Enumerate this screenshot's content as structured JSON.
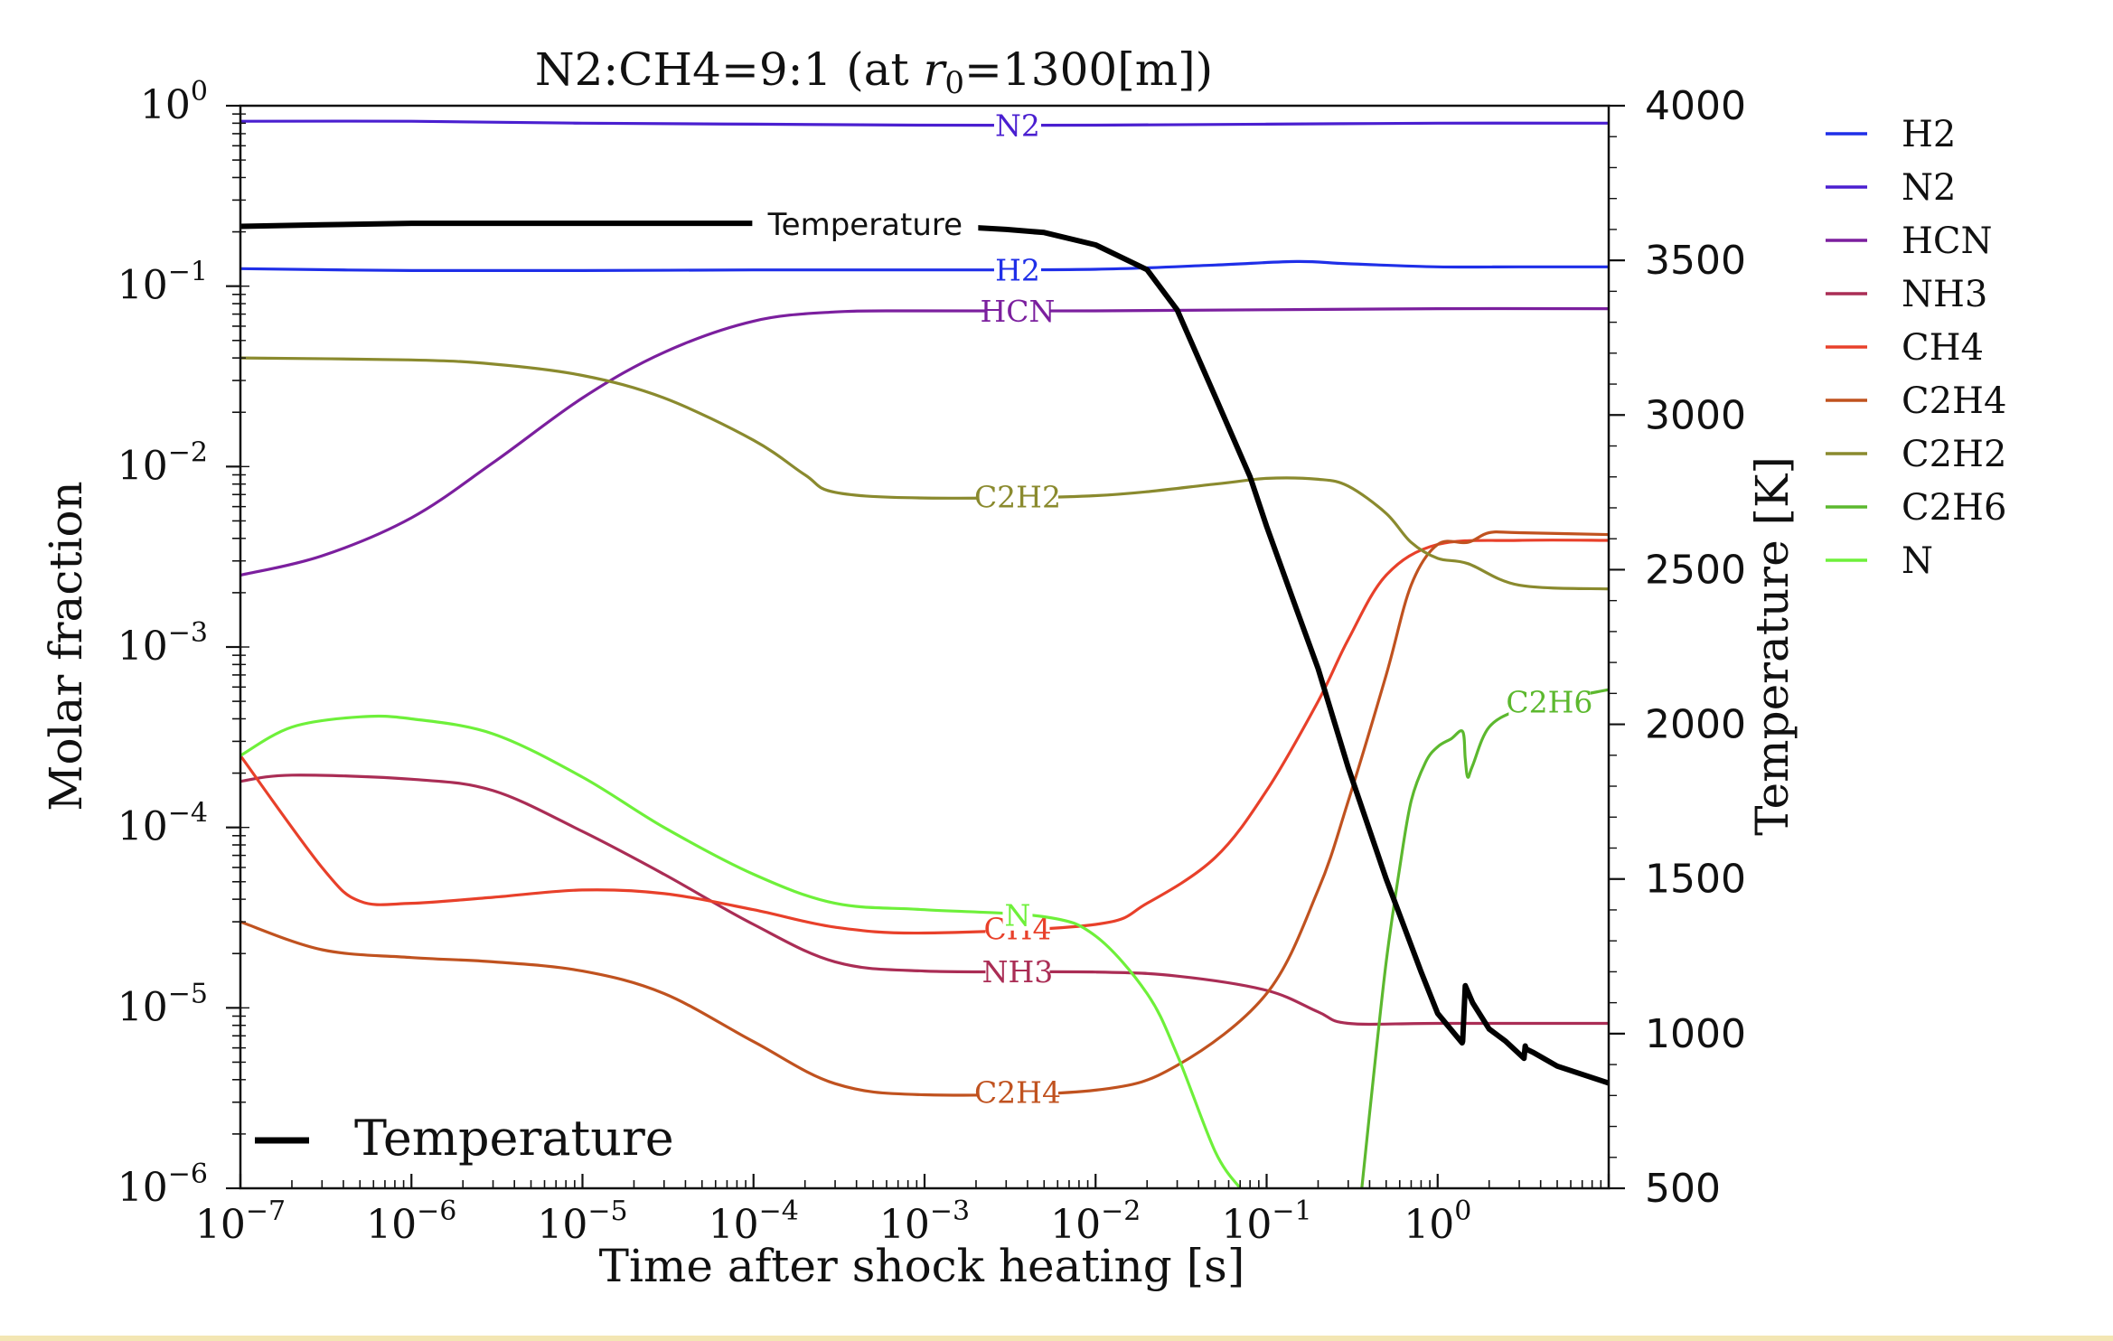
{
  "chart_data": {
    "type": "line",
    "title": "N2:CH4=9:1 (at r₀=1300[m])",
    "title_parts": {
      "prefix": "N2:CH4=9:1 (at ",
      "symbol": "r",
      "subscript": "0",
      "suffix": "=1300[m])"
    },
    "xlabel": "Time after shock heating [s]",
    "ylabel": "Molar fraction",
    "y2label": "Temperature [K]",
    "xscale": "log",
    "yscale": "log",
    "xlim": [
      1e-07,
      10
    ],
    "ylim": [
      1e-06,
      1
    ],
    "y2lim": [
      500,
      4000
    ],
    "x_tick_labels": [
      {
        "base": "10",
        "exp": "−7",
        "value": 1e-07
      },
      {
        "base": "10",
        "exp": "−6",
        "value": 1e-06
      },
      {
        "base": "10",
        "exp": "−5",
        "value": 1e-05
      },
      {
        "base": "10",
        "exp": "−4",
        "value": 0.0001
      },
      {
        "base": "10",
        "exp": "−3",
        "value": 0.001
      },
      {
        "base": "10",
        "exp": "−2",
        "value": 0.01
      },
      {
        "base": "10",
        "exp": "−1",
        "value": 0.1
      },
      {
        "base": "10",
        "exp": "0",
        "value": 1
      }
    ],
    "y_tick_labels": [
      {
        "base": "10",
        "exp": "0",
        "value": 1
      },
      {
        "base": "10",
        "exp": "−1",
        "value": 0.1
      },
      {
        "base": "10",
        "exp": "−2",
        "value": 0.01
      },
      {
        "base": "10",
        "exp": "−3",
        "value": 0.001
      },
      {
        "base": "10",
        "exp": "−4",
        "value": 0.0001
      },
      {
        "base": "10",
        "exp": "−5",
        "value": 1e-05
      },
      {
        "base": "10",
        "exp": "−6",
        "value": 1e-06
      }
    ],
    "y2_tick_labels": [
      "4000",
      "3500",
      "3000",
      "2500",
      "2000",
      "1500",
      "1000",
      "500"
    ],
    "y2_tick_values": [
      4000,
      3500,
      3000,
      2500,
      2000,
      1500,
      1000,
      500
    ],
    "temperature_legend_label": "Temperature",
    "series": [
      {
        "name": "H2",
        "color": "#1f2fe8",
        "label_at": 0.0035,
        "x": [
          1e-07,
          1e-06,
          1e-05,
          0.0001,
          0.001,
          0.01,
          0.05,
          0.15,
          0.3,
          1,
          3,
          10
        ],
        "y": [
          0.125,
          0.122,
          0.122,
          0.123,
          0.123,
          0.124,
          0.131,
          0.137,
          0.133,
          0.128,
          0.128,
          0.128
        ]
      },
      {
        "name": "N2",
        "color": "#4a1fd0",
        "label_at": 0.0035,
        "x": [
          1e-07,
          1e-06,
          1e-05,
          0.0001,
          0.001,
          0.01,
          0.1,
          1,
          10
        ],
        "y": [
          0.82,
          0.82,
          0.8,
          0.79,
          0.78,
          0.78,
          0.79,
          0.8,
          0.8
        ]
      },
      {
        "name": "HCN",
        "color": "#7b1f9e",
        "label_at": 0.0035,
        "x": [
          1e-07,
          3e-07,
          1e-06,
          3e-06,
          1e-05,
          3e-05,
          0.0001,
          0.0003,
          0.001,
          0.01,
          0.1,
          1,
          10
        ],
        "y": [
          0.0025,
          0.0032,
          0.0052,
          0.0105,
          0.024,
          0.043,
          0.064,
          0.072,
          0.073,
          0.073,
          0.074,
          0.075,
          0.075
        ]
      },
      {
        "name": "NH3",
        "color": "#aa2d55",
        "label_at": 0.0035,
        "x": [
          1e-07,
          2e-07,
          1e-06,
          3e-06,
          1e-05,
          3e-05,
          0.0001,
          0.0003,
          0.001,
          0.01,
          0.03,
          0.1,
          0.2,
          0.3,
          1,
          10
        ],
        "y": [
          0.00018,
          0.000195,
          0.000185,
          0.00016,
          9.5e-05,
          5.5e-05,
          2.9e-05,
          1.8e-05,
          1.6e-05,
          1.58e-05,
          1.5e-05,
          1.25e-05,
          9.5e-06,
          8.2e-06,
          8.2e-06,
          8.2e-06
        ]
      },
      {
        "name": "CH4",
        "color": "#e8402a",
        "label_at": 0.0035,
        "x": [
          1e-07,
          3e-07,
          5e-07,
          1e-06,
          3e-06,
          1e-05,
          3e-05,
          0.0001,
          0.0003,
          0.001,
          0.01,
          0.02,
          0.05,
          0.1,
          0.2,
          0.3,
          0.5,
          1,
          3,
          10
        ],
        "y": [
          0.00025,
          6e-05,
          3.9e-05,
          3.8e-05,
          4.1e-05,
          4.5e-05,
          4.3e-05,
          3.5e-05,
          2.8e-05,
          2.6e-05,
          2.9e-05,
          3.8e-05,
          6.8e-05,
          0.00016,
          0.0005,
          0.0011,
          0.0025,
          0.0037,
          0.0039,
          0.0039
        ]
      },
      {
        "name": "C2H4",
        "color": "#c0521f",
        "label_at": 0.0035,
        "x": [
          1e-07,
          3e-07,
          1e-06,
          3e-06,
          1e-05,
          3e-05,
          0.0001,
          0.0003,
          0.001,
          0.01,
          0.03,
          0.1,
          0.2,
          0.3,
          0.5,
          0.7,
          1,
          1.5,
          2,
          3,
          10
        ],
        "y": [
          3e-05,
          2.1e-05,
          1.9e-05,
          1.8e-05,
          1.6e-05,
          1.2e-05,
          6.5e-06,
          3.8e-06,
          3.3e-06,
          3.5e-06,
          4.8e-06,
          1.2e-05,
          4.5e-05,
          0.00014,
          0.0007,
          0.0022,
          0.0037,
          0.0038,
          0.0043,
          0.0043,
          0.0042
        ]
      },
      {
        "name": "C2H2",
        "color": "#8a8a2e",
        "label_at": 0.0035,
        "x": [
          1e-07,
          1e-06,
          3e-06,
          1e-05,
          3e-05,
          0.0001,
          0.0002,
          0.0003,
          0.001,
          0.01,
          0.05,
          0.1,
          0.2,
          0.3,
          0.5,
          0.7,
          1,
          1.5,
          3,
          10
        ],
        "y": [
          0.04,
          0.039,
          0.037,
          0.032,
          0.024,
          0.014,
          0.009,
          0.0072,
          0.0067,
          0.0069,
          0.008,
          0.0086,
          0.0085,
          0.0078,
          0.0055,
          0.0038,
          0.0031,
          0.0029,
          0.0022,
          0.0021
        ]
      },
      {
        "name": "C2H6",
        "color": "#5cb82e",
        "label_at": 4.5,
        "x": [
          0.36,
          0.42,
          0.5,
          0.6,
          0.7,
          0.85,
          1,
          1.2,
          1.4,
          1.45,
          1.5,
          1.6,
          2,
          3,
          5,
          10
        ],
        "y": [
          1e-06,
          4e-06,
          1.8e-05,
          6e-05,
          0.00014,
          0.00023,
          0.00028,
          0.00031,
          0.00034,
          0.00024,
          0.00019,
          0.00022,
          0.00036,
          0.00045,
          0.00051,
          0.00058
        ]
      },
      {
        "name": "N",
        "color": "#6ef03a",
        "label_at": 0.0035,
        "x": [
          1e-07,
          2e-07,
          5e-07,
          1e-06,
          3e-06,
          1e-05,
          3e-05,
          0.0001,
          0.0003,
          0.001,
          0.005,
          0.01,
          0.02,
          0.03,
          0.05,
          0.07
        ],
        "y": [
          0.00025,
          0.00036,
          0.00041,
          0.0004,
          0.00033,
          0.00019,
          0.0001,
          5.5e-05,
          3.8e-05,
          3.5e-05,
          3.2e-05,
          2.5e-05,
          1.2e-05,
          5.5e-06,
          1.6e-06,
          1e-06
        ]
      }
    ],
    "temperature": {
      "name": "Temperature",
      "color": "#000000",
      "label_at": 0.00045,
      "x": [
        1e-07,
        3e-07,
        1e-06,
        1e-05,
        0.0001,
        0.001,
        0.003,
        0.005,
        0.01,
        0.02,
        0.03,
        0.05,
        0.08,
        0.1,
        0.15,
        0.2,
        0.3,
        0.5,
        0.8,
        1.0,
        1.39,
        1.4,
        1.45,
        1.6,
        2.0,
        2.5,
        3.2,
        3.25,
        3.3,
        3.6,
        5,
        10
      ],
      "y": [
        3610,
        3615,
        3620,
        3620,
        3620,
        3615,
        3600,
        3590,
        3550,
        3470,
        3340,
        3060,
        2800,
        2640,
        2370,
        2180,
        1860,
        1500,
        1200,
        1065,
        970,
        975,
        1155,
        1100,
        1015,
        975,
        920,
        960,
        950,
        940,
        895,
        840
      ]
    }
  },
  "legend": {
    "items": [
      {
        "label": "H2",
        "color": "#1f2fe8"
      },
      {
        "label": "N2",
        "color": "#4a1fd0"
      },
      {
        "label": "HCN",
        "color": "#7b1f9e"
      },
      {
        "label": "NH3",
        "color": "#aa2d55"
      },
      {
        "label": "CH4",
        "color": "#e8402a"
      },
      {
        "label": "C2H4",
        "color": "#c0521f"
      },
      {
        "label": "C2H2",
        "color": "#8a8a2e"
      },
      {
        "label": "C2H6",
        "color": "#5cb82e"
      },
      {
        "label": "N",
        "color": "#6ef03a"
      }
    ]
  }
}
